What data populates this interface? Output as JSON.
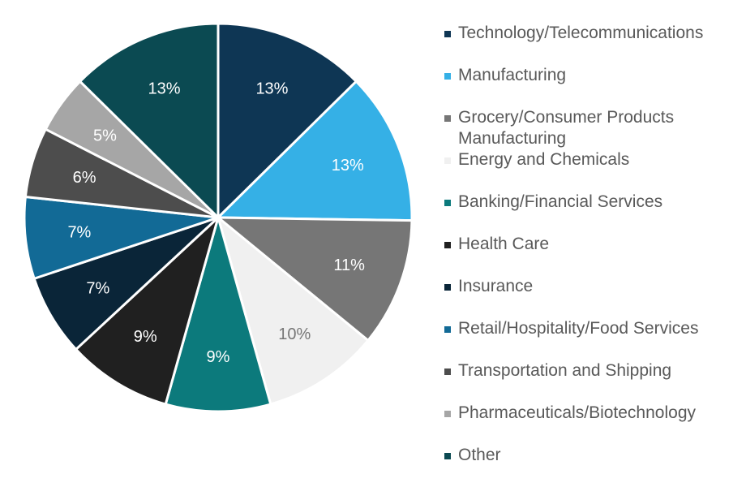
{
  "chart_data": {
    "type": "pie",
    "title": "",
    "slices": [
      {
        "name": "Technology/Telecommunications",
        "value": 13,
        "label": "13%",
        "color": "#0e3654",
        "label_color": "#ffffff"
      },
      {
        "name": "Manufacturing",
        "value": 13,
        "label": "13%",
        "color": "#35b0e6",
        "label_color": "#ffffff"
      },
      {
        "name": "Grocery/Consumer Products Manufacturing",
        "value": 11,
        "label": "11%",
        "color": "#767676",
        "label_color": "#ffffff"
      },
      {
        "name": "Energy and Chemicals",
        "value": 10,
        "label": "10%",
        "color": "#f0f0f0",
        "label_color": "#767676"
      },
      {
        "name": "Banking/Financial Services",
        "value": 9,
        "label": "9%",
        "color": "#0c7a7c",
        "label_color": "#ffffff"
      },
      {
        "name": "Health Care",
        "value": 9,
        "label": "9%",
        "color": "#202020",
        "label_color": "#ffffff"
      },
      {
        "name": "Insurance",
        "value": 7,
        "label": "7%",
        "color": "#0a2538",
        "label_color": "#ffffff"
      },
      {
        "name": "Retail/Hospitality/Food Services",
        "value": 7,
        "label": "7%",
        "color": "#126a96",
        "label_color": "#ffffff"
      },
      {
        "name": "Transportation and Shipping",
        "value": 6,
        "label": "6%",
        "color": "#4d4d4d",
        "label_color": "#ffffff"
      },
      {
        "name": "Pharmaceuticals/Biotechnology",
        "value": 5,
        "label": "5%",
        "color": "#a6a6a6",
        "label_color": "#ffffff"
      },
      {
        "name": "Other",
        "value": 13,
        "label": "13%",
        "color": "#0b4a52",
        "label_color": "#ffffff"
      }
    ],
    "legend_position": "right"
  },
  "legend": {
    "items": [
      {
        "label": "Technology/Telecommunications",
        "color": "#0e3654"
      },
      {
        "label": "Manufacturing",
        "color": "#35b0e6"
      },
      {
        "label": "Grocery/Consumer Products Manufacturing",
        "color": "#767676"
      },
      {
        "label": "Energy and Chemicals",
        "color": "#f0f0f0"
      },
      {
        "label": "Banking/Financial Services",
        "color": "#0c7a7c"
      },
      {
        "label": "Health Care",
        "color": "#202020"
      },
      {
        "label": "Insurance",
        "color": "#0a2538"
      },
      {
        "label": "Retail/Hospitality/Food Services",
        "color": "#126a96"
      },
      {
        "label": "Transportation and Shipping",
        "color": "#4d4d4d"
      },
      {
        "label": "Pharmaceuticals/Biotechnology",
        "color": "#a6a6a6"
      },
      {
        "label": "Other",
        "color": "#0b4a52"
      }
    ]
  }
}
